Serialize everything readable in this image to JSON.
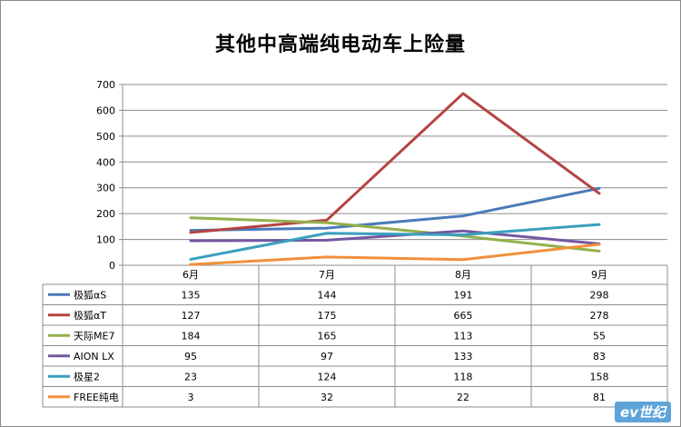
{
  "chart_data": {
    "type": "line",
    "title": "其他中高端纯电动车上险量",
    "categories": [
      "6月",
      "7月",
      "8月",
      "9月"
    ],
    "ylim": [
      0,
      700
    ],
    "yticks": [
      "0",
      "100",
      "200",
      "300",
      "400",
      "500",
      "600",
      "700"
    ],
    "grid": true,
    "legend": "data-table-left",
    "series": [
      {
        "name": "极狐αS",
        "color": "#4a7ab8",
        "values": [
          135,
          144,
          191,
          298
        ]
      },
      {
        "name": "极狐αT",
        "color": "#b44542",
        "values": [
          127,
          175,
          665,
          278
        ]
      },
      {
        "name": "天际ME7",
        "color": "#93b04a",
        "values": [
          184,
          165,
          113,
          55
        ]
      },
      {
        "name": "AION LX",
        "color": "#7457a0",
        "values": [
          95,
          97,
          133,
          83
        ]
      },
      {
        "name": "极星2",
        "color": "#3a9fbd",
        "values": [
          23,
          124,
          118,
          158
        ]
      },
      {
        "name": "FREE纯电",
        "color": "#f0913b",
        "values": [
          3,
          32,
          22,
          81
        ]
      }
    ]
  },
  "watermark": "ev世纪"
}
